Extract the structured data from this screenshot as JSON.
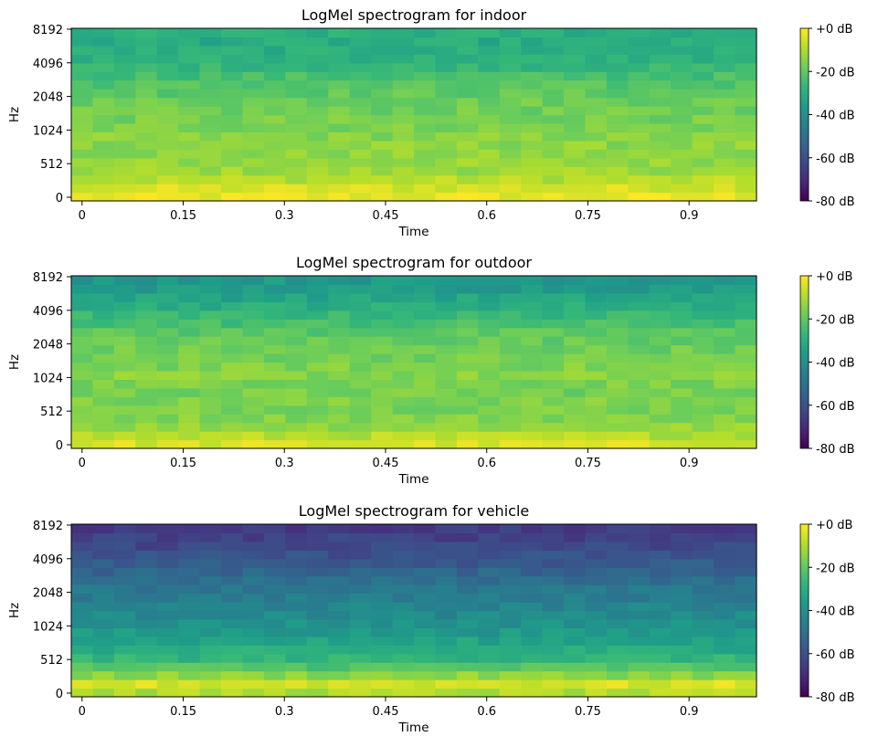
{
  "figure": {
    "background": "#ffffff"
  },
  "colorbar": {
    "colormap": "viridis",
    "stops": [
      "#440154",
      "#482878",
      "#3e4989",
      "#31688e",
      "#26828e",
      "#1f9e89",
      "#35b779",
      "#6ece58",
      "#b5de2b",
      "#fde725"
    ],
    "ticks": [
      {
        "value": 0,
        "label": "+0 dB"
      },
      {
        "value": -20,
        "label": "-20 dB"
      },
      {
        "value": -40,
        "label": "-40 dB"
      },
      {
        "value": -60,
        "label": "-60 dB"
      },
      {
        "value": -80,
        "label": "-80 dB"
      }
    ],
    "range": [
      -80,
      0
    ]
  },
  "chart_data": [
    {
      "type": "heatmap",
      "title": "LogMel spectrogram for indoor",
      "xlabel": "Time",
      "ylabel": "Hz",
      "xticks": [
        "0",
        "0.15",
        "0.3",
        "0.45",
        "0.6",
        "0.75",
        "0.9"
      ],
      "xtick_values": [
        0,
        0.15,
        0.3,
        0.45,
        0.6,
        0.75,
        0.9
      ],
      "xlim": [
        -0.016,
        1.0
      ],
      "yticks": [
        "0",
        "512",
        "1024",
        "2048",
        "4096",
        "8192"
      ],
      "y_scale": "mel",
      "vmin": -80,
      "vmax": 0,
      "time_frames": 32,
      "mel_bins": 20,
      "db_profile_low_to_high": [
        -3,
        -5,
        -9,
        -12,
        -13,
        -14,
        -14,
        -15,
        -16,
        -17,
        -18,
        -18,
        -20,
        -22,
        -24,
        -27,
        -29,
        -30,
        -31,
        -30
      ]
    },
    {
      "type": "heatmap",
      "title": "LogMel spectrogram for outdoor",
      "xlabel": "Time",
      "ylabel": "Hz",
      "xticks": [
        "0",
        "0.15",
        "0.3",
        "0.45",
        "0.6",
        "0.75",
        "0.9"
      ],
      "xtick_values": [
        0,
        0.15,
        0.3,
        0.45,
        0.6,
        0.75,
        0.9
      ],
      "xlim": [
        -0.016,
        1.0
      ],
      "yticks": [
        "0",
        "512",
        "1024",
        "2048",
        "4096",
        "8192"
      ],
      "y_scale": "mel",
      "vmin": -80,
      "vmax": 0,
      "time_frames": 32,
      "mel_bins": 20,
      "db_profile_low_to_high": [
        -5,
        -9,
        -13,
        -15,
        -16,
        -16,
        -17,
        -16,
        -15,
        -16,
        -17,
        -18,
        -19,
        -21,
        -24,
        -27,
        -30,
        -33,
        -36,
        -37
      ]
    },
    {
      "type": "heatmap",
      "title": "LogMel spectrogram for vehicle",
      "xlabel": "Time",
      "ylabel": "Hz",
      "xticks": [
        "0",
        "0.15",
        "0.3",
        "0.45",
        "0.6",
        "0.75",
        "0.9"
      ],
      "xtick_values": [
        0,
        0.15,
        0.3,
        0.45,
        0.6,
        0.75,
        0.9
      ],
      "xlim": [
        -0.016,
        1.0
      ],
      "yticks": [
        "0",
        "512",
        "1024",
        "2048",
        "4096",
        "8192"
      ],
      "y_scale": "mel",
      "vmin": -80,
      "vmax": 0,
      "time_frames": 32,
      "mel_bins": 20,
      "db_profile_low_to_high": [
        -10,
        -5,
        -14,
        -22,
        -28,
        -31,
        -34,
        -37,
        -39,
        -42,
        -44,
        -46,
        -48,
        -51,
        -54,
        -57,
        -60,
        -62,
        -64,
        -66
      ]
    }
  ]
}
